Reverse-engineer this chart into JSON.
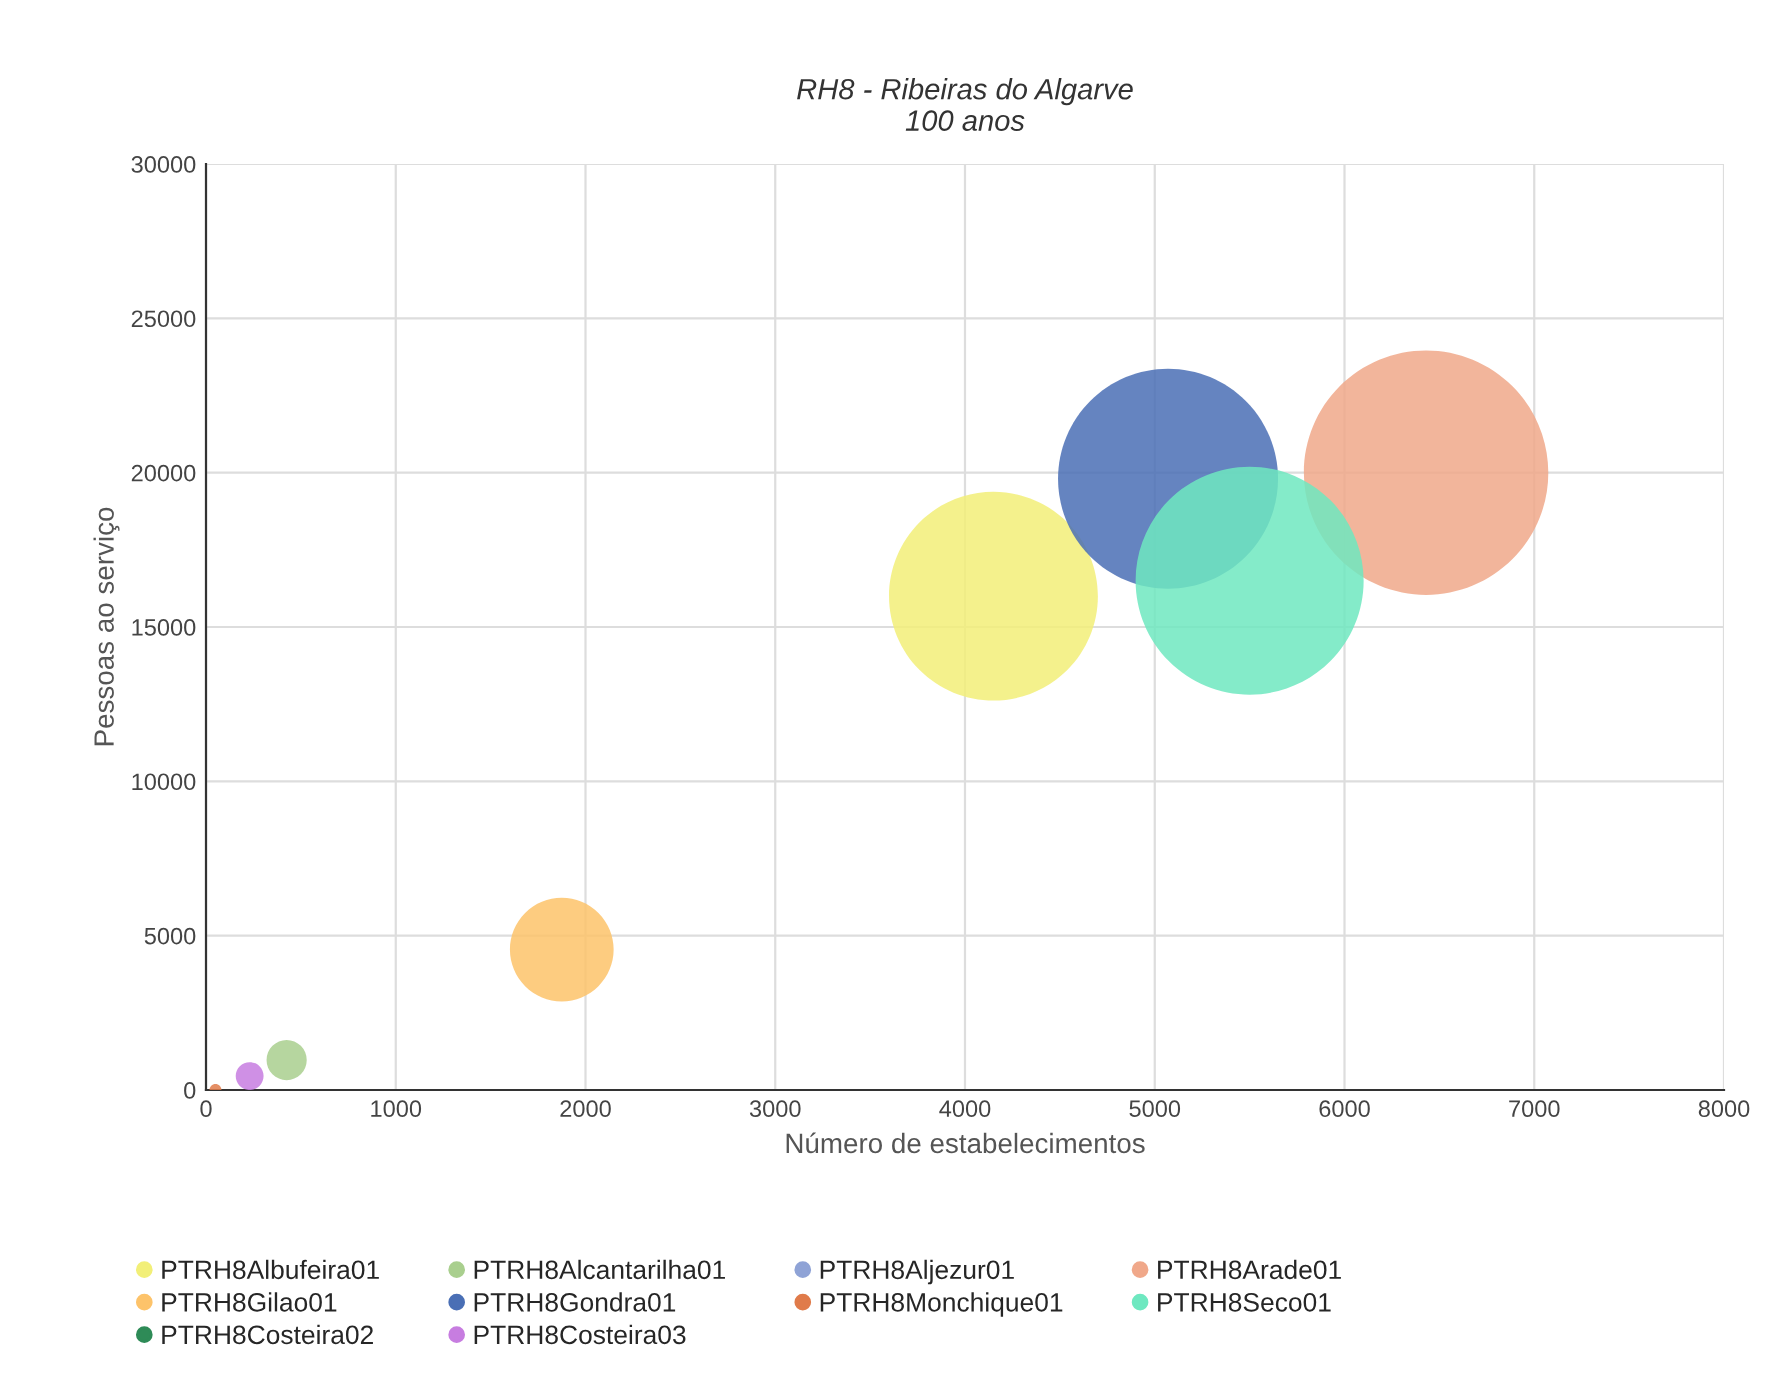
{
  "chart_data": {
    "type": "bubble",
    "title": "RH8 - Ribeiras do Algarve\n100 anos",
    "xlabel": "Número de estabelecimentos",
    "ylabel": "Pessoas ao serviço",
    "xlim": [
      0,
      8000
    ],
    "xticks": [
      0,
      1000,
      2000,
      3000,
      4000,
      5000,
      6000,
      7000,
      8000
    ],
    "ylim": [
      0,
      30000
    ],
    "yticks": [
      0,
      5000,
      10000,
      15000,
      20000,
      25000,
      30000
    ],
    "grid": true,
    "legend": "bottom",
    "series": [
      {
        "name": "PTRH8Albufeira01",
        "color": "#f2ef78",
        "x": [
          4150
        ],
        "values": [
          16000
        ],
        "sizes": [
          0.73
        ]
      },
      {
        "name": "PTRH8Alcantarilha01",
        "color": "#a9cf8e",
        "x": [
          425
        ],
        "values": [
          970
        ],
        "sizes": [
          0.027
        ]
      },
      {
        "name": "PTRH8Aljezur01",
        "color": "#8fa3d6",
        "x": [
          null
        ],
        "values": [
          null
        ],
        "sizes": [
          null
        ]
      },
      {
        "name": "PTRH8Arade01",
        "color": "#f0a88a",
        "x": [
          6430
        ],
        "values": [
          20000
        ],
        "sizes": [
          1
        ]
      },
      {
        "name": "PTRH8Gilao01",
        "color": "#fdc36a",
        "x": [
          1875
        ],
        "values": [
          4550
        ],
        "sizes": [
          0.18
        ]
      },
      {
        "name": "PTRH8Gondra01",
        "color": "#4a6fb5",
        "x": [
          5070
        ],
        "values": [
          19800
        ],
        "sizes": [
          0.81
        ]
      },
      {
        "name": "PTRH8Monchique01",
        "color": "#e07b4a",
        "x": [
          50
        ],
        "values": [
          0
        ],
        "sizes": [
          0.0024
        ]
      },
      {
        "name": "PTRH8Seco01",
        "color": "#6ee8c0",
        "x": [
          5500
        ],
        "values": [
          16500
        ],
        "sizes": [
          0.87
        ]
      },
      {
        "name": "PTRH8Costeira02",
        "color": "#2e8b57",
        "x": [
          null
        ],
        "values": [
          null
        ],
        "sizes": [
          null
        ]
      },
      {
        "name": "PTRH8Costeira03",
        "color": "#c77de0",
        "x": [
          230
        ],
        "values": [
          450
        ],
        "sizes": [
          0.013
        ]
      }
    ]
  }
}
